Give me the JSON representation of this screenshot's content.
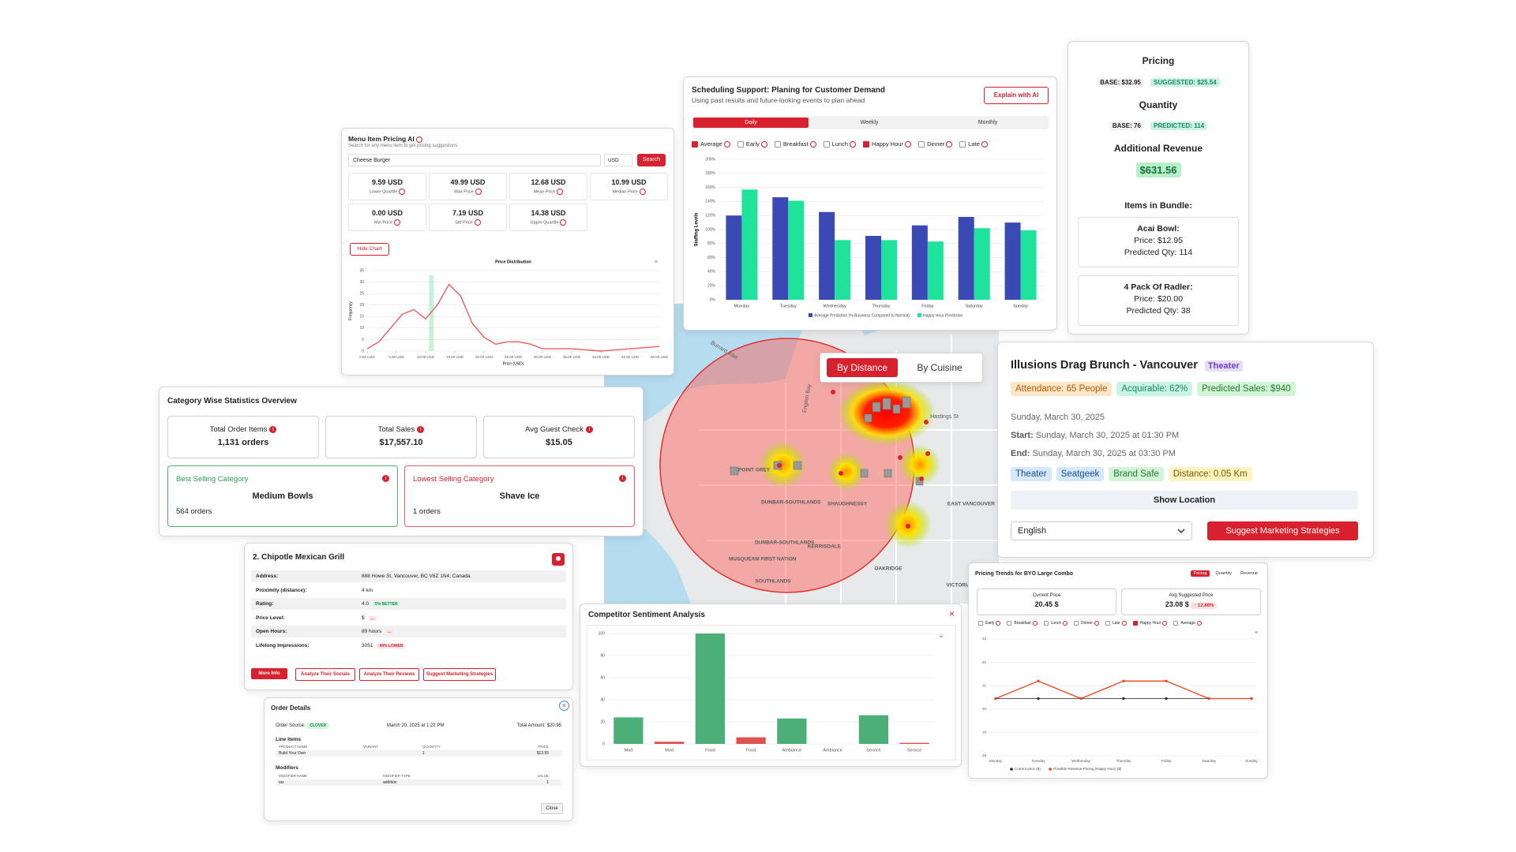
{
  "scheduling": {
    "title": "Scheduling Support: Planing for Customer Demand",
    "subtitle": "Using past results and future-looking events to plan ahead",
    "button": "Explain with AI",
    "tabs": [
      {
        "label": "Daily",
        "active": true
      },
      {
        "label": "Weekly",
        "active": false
      },
      {
        "label": "Monthly",
        "active": false
      }
    ],
    "filters": [
      {
        "label": "Average",
        "checked": true
      },
      {
        "label": "Early",
        "checked": false
      },
      {
        "label": "Breakfast",
        "checked": false
      },
      {
        "label": "Lunch",
        "checked": false
      },
      {
        "label": "Happy Hour",
        "checked": true
      },
      {
        "label": "Dinner",
        "checked": false
      },
      {
        "label": "Late",
        "checked": false
      }
    ],
    "chart": {
      "type": "bar",
      "y_label": "Staffing Levels",
      "categories": [
        "Monday",
        "Tuesday",
        "Wednesday",
        "Thursday",
        "Friday",
        "Saturday",
        "Sunday"
      ],
      "series": [
        {
          "name": "Average Prediction (% Business Compared to Normal)",
          "color": "#3a49b4",
          "values": [
            120,
            146,
            125,
            91,
            106,
            118,
            110
          ]
        },
        {
          "name": "Happy Hour Prediction",
          "color": "#1fe39c",
          "values": [
            157,
            141,
            85,
            85,
            83,
            102,
            99
          ]
        }
      ],
      "ylim": [
        0,
        200
      ],
      "yticks": [
        {
          "value": 0,
          "label": "0%"
        },
        {
          "value": 20,
          "label": "20%"
        },
        {
          "value": 40,
          "label": "40%"
        },
        {
          "value": 60,
          "label": "60%"
        },
        {
          "value": 80,
          "label": "80%"
        },
        {
          "value": 100,
          "label": "100%"
        },
        {
          "value": 120,
          "label": "120%"
        },
        {
          "value": 140,
          "label": "140%"
        },
        {
          "value": 160,
          "label": "160%"
        },
        {
          "value": 180,
          "label": "180%"
        },
        {
          "value": 200,
          "label": "200%"
        }
      ],
      "grid": true
    }
  },
  "pricing": {
    "pricing_label": "Pricing",
    "base_price": "BASE: $32.95",
    "suggested_price": "SUGGESTED: $25.54",
    "quantity_label": "Quantity",
    "base_qty": "BASE: 76",
    "predicted_qty": "PREDICTED: 114",
    "revenue_label": "Additional Revenue",
    "revenue": "$631.56",
    "bundle_label": "Items in Bundle:",
    "items": [
      {
        "name": "Acai Bowl:",
        "price": "Price: $12.95",
        "qty": "Predicted Qty: 114"
      },
      {
        "name": "4 Pack Of Radler:",
        "price": "Price: $20.00",
        "qty": "Predicted Qty: 38"
      }
    ]
  },
  "menu_pricing": {
    "title": "Menu Item Pricing AI",
    "subtitle": "Search for any menu item to get pricing suggestions",
    "query": "Cheese Burger",
    "currency": "USD",
    "search": "Search",
    "stats": [
      {
        "value": "9.59 USD",
        "label": "Lower Quartile"
      },
      {
        "value": "49.99 USD",
        "label": "Max Price"
      },
      {
        "value": "12.68 USD",
        "label": "Mean Price"
      },
      {
        "value": "10.99 USD",
        "label": "Median Price"
      },
      {
        "value": "0.00 USD",
        "label": "Min Price"
      },
      {
        "value": "7.19 USD",
        "label": "Std Price"
      },
      {
        "value": "14.38 USD",
        "label": "Upper Quartile"
      }
    ],
    "hide_chart": "Hide Chart",
    "chart": {
      "type": "line",
      "title": "Price Distribution",
      "x_label": "Price (USD)",
      "y_label": "Frequency",
      "color": "#f05a5a",
      "x": [
        0,
        2,
        4,
        6,
        8,
        10,
        12,
        14,
        16,
        18,
        20,
        22,
        24,
        26,
        28,
        30,
        35,
        40,
        45,
        50
      ],
      "values": [
        1,
        4,
        10,
        16,
        18,
        14,
        20,
        29,
        24,
        12,
        6,
        3,
        4,
        4,
        3,
        1,
        1,
        0,
        1,
        2
      ],
      "xlim": [
        0,
        50
      ],
      "xticks": [
        {
          "value": 0,
          "label": "0.00 USD"
        },
        {
          "value": 5,
          "label": "5.00 USD"
        },
        {
          "value": 10,
          "label": "10.00 USD"
        },
        {
          "value": 15,
          "label": "15.00 USD"
        },
        {
          "value": 20,
          "label": "20.00 USD"
        },
        {
          "value": 25,
          "label": "25.00 USD"
        },
        {
          "value": 30,
          "label": "30.00 USD"
        },
        {
          "value": 35,
          "label": "35.00 USD"
        },
        {
          "value": 40,
          "label": "40.00 USD"
        },
        {
          "value": 45,
          "label": "45.00 USD"
        },
        {
          "value": 50,
          "label": "50.00 USD"
        }
      ],
      "ylim": [
        0,
        35
      ],
      "yticks": [
        0,
        5,
        10,
        15,
        20,
        25,
        30,
        35
      ],
      "grid": true
    }
  },
  "map": {
    "modes": [
      {
        "label": "By Distance",
        "active": true
      },
      {
        "label": "By Cuisine",
        "active": false
      }
    ],
    "places": [
      "POINT GREY",
      "DUNBAR-SOUTHLANDS",
      "SHAUGHNESSY",
      "KERRISDALE",
      "MUSQUEAM FIRST NATION",
      "DUNBAR-SOUTHLANDS",
      "OAKRIDGE",
      "VICTORIA",
      "EAST VANCOUVER",
      "English Bay",
      "Burrard Inlet",
      "Hastings St",
      "SOUTHLANDS"
    ]
  },
  "category_stats": {
    "title": "Category Wise Statistics Overview",
    "cards": [
      {
        "label": "Total Order Items",
        "value": "1,131 orders"
      },
      {
        "label": "Total Sales",
        "value": "$17,557.10"
      },
      {
        "label": "Avg Guest Check",
        "value": "$15.05"
      }
    ],
    "best": {
      "label": "Best Selling Category",
      "name": "Medium Bowls",
      "count": "564 orders"
    },
    "lowest": {
      "label": "Lowest Selling Category",
      "name": "Shave Ice",
      "count": "1 orders"
    }
  },
  "event": {
    "title": "Illusions Drag Brunch - Vancouver",
    "category": "Theater",
    "metrics": [
      "Attendance: 65 People",
      "Acquirable: 62%",
      "Predicted Sales: $940"
    ],
    "date": "Sunday, March 30, 2025",
    "start_label": "Start:",
    "start": "Sunday, March 30, 2025 at 01:30 PM",
    "end_label": "End:",
    "end": "Sunday, March 30, 2025 at 03:30 PM",
    "tags": [
      "Theater",
      "Seatgeek",
      "Brand Safe",
      "Distance: 0.05 Km"
    ],
    "show_location": "Show Location",
    "language": "English",
    "action": "Suggest Marketing Strategies"
  },
  "competitor": {
    "title": "2. Chipotle Mexican Grill",
    "rows": [
      {
        "label": "Address:",
        "value": "888 Howe St, Vancouver, BC V6Z 1N4, Canada"
      },
      {
        "label": "Proximity (distance):",
        "value": "4 km"
      },
      {
        "label": "Rating:",
        "value": "4.0",
        "badge": "5% BETTER"
      },
      {
        "label": "Price Level:",
        "value": "$",
        "badge": "..."
      },
      {
        "label": "Open Hours:",
        "value": "89 hours",
        "badge": "..."
      },
      {
        "label": "Lifelong Impressions:",
        "value": "3051",
        "badge": "94% LOWER"
      }
    ],
    "buttons": [
      "More Info",
      "Analyze Their Socials",
      "Analyze Their Reviews",
      "Suggest Marketing Strategies"
    ]
  },
  "order": {
    "title": "Order Details",
    "source_label": "Order Source:",
    "source": "CLOVER",
    "date": "March 20, 2025 at 1:22 PM",
    "total": "Total Amount: $20.95",
    "line_items_label": "Line Items",
    "line_items": {
      "headers": [
        "PRODUCT NAME",
        "VARIANT",
        "QUANTITY",
        "PRICE"
      ],
      "rows": [
        [
          "Build Your Own",
          null,
          "1",
          "$13.95"
        ]
      ]
    },
    "modifiers_label": "Modifiers",
    "modifiers": {
      "headers": [
        "MODIFIER NAME",
        "MODIFIER TYPE",
        "VALUE"
      ],
      "rows": [
        [
          "tax",
          "addition",
          "1"
        ]
      ]
    },
    "close": "Close"
  },
  "sentiment": {
    "title": "Competitor Sentiment Analysis",
    "chart": {
      "type": "bar",
      "categories": [
        "Mod",
        "Mod",
        "Food",
        "Food",
        "Ambiance",
        "Ambiance",
        "Service",
        "Service"
      ],
      "values": [
        24,
        2,
        100,
        6,
        23,
        0,
        26,
        1
      ],
      "colors": [
        "#4caf78",
        "#e05252",
        "#4caf78",
        "#e05252",
        "#4caf78",
        "#e05252",
        "#4caf78",
        "#e05252"
      ],
      "ylim": [
        0,
        100
      ],
      "yticks": [
        0,
        20,
        40,
        60,
        80,
        100
      ],
      "grid": true
    }
  },
  "trends": {
    "title": "Pricing Trends for BYO Large Combo",
    "tabs": [
      {
        "label": "Pricing",
        "active": true
      },
      {
        "label": "Quantity",
        "active": false
      },
      {
        "label": "Revenue",
        "active": false
      }
    ],
    "current_label": "Current Price",
    "current": "20.45 $",
    "suggested_label": "Avg Suggested Price",
    "suggested": "23.08 $",
    "change": "↑ 12.86%",
    "filters": [
      {
        "label": "Early",
        "checked": false
      },
      {
        "label": "Breakfast",
        "checked": false
      },
      {
        "label": "Lunch",
        "checked": false
      },
      {
        "label": "Dinner",
        "checked": false
      },
      {
        "label": "Late",
        "checked": false
      },
      {
        "label": "Happy Hour",
        "checked": true
      },
      {
        "label": "Average",
        "checked": false
      }
    ],
    "chart": {
      "type": "line",
      "categories": [
        "Monday",
        "Tuesday",
        "Wednesday",
        "Thursday",
        "Friday",
        "Saturday",
        "Sunday"
      ],
      "series": [
        {
          "name": "Current price ($)",
          "color": "#222222",
          "values": [
            20.45,
            20.45,
            20.45,
            20.45,
            20.45,
            20.45,
            20.45
          ]
        },
        {
          "name": "Possible Revenue Pricing (Happy Hour) ($)",
          "color": "#e8431c",
          "values": [
            20.45,
            21.2,
            20.45,
            21.2,
            21.2,
            20.45,
            20.45
          ]
        }
      ],
      "ylim": [
        18,
        23
      ],
      "yticks": [
        18,
        19,
        20,
        21,
        22,
        23
      ],
      "grid": true
    }
  }
}
